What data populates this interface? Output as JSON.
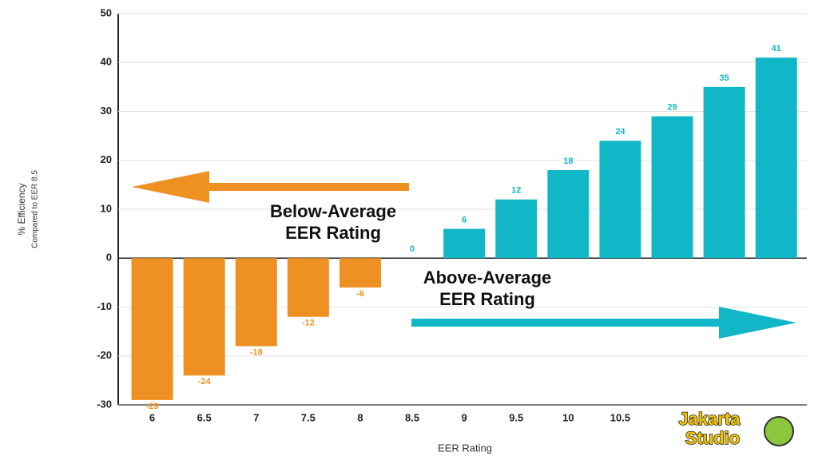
{
  "chart_data": {
    "type": "bar",
    "y_label": "% Efficiency",
    "y_sublabel": "Compared to EER 8.5",
    "x_label": "EER Rating",
    "categories": [
      "6",
      "6.5",
      "7",
      "7.5",
      "8",
      "8.5",
      "9",
      "9.5",
      "10",
      "10.5",
      null,
      null,
      null
    ],
    "values": [
      -29,
      -24,
      -18,
      -12,
      -6,
      0,
      6,
      12,
      18,
      24,
      29,
      35,
      41
    ],
    "negative_color": "#ef9122",
    "positive_color": "#12b7c7",
    "ylim": [
      -30,
      50
    ],
    "yticks": [
      -30,
      -20,
      -10,
      0,
      10,
      20,
      30,
      40,
      50
    ],
    "grid": true,
    "annotations": [
      [
        "Below-Average",
        "EER Rating"
      ],
      [
        "Above-Average",
        "EER Rating"
      ]
    ],
    "watermark": [
      "Jakarta",
      "Studio"
    ]
  }
}
